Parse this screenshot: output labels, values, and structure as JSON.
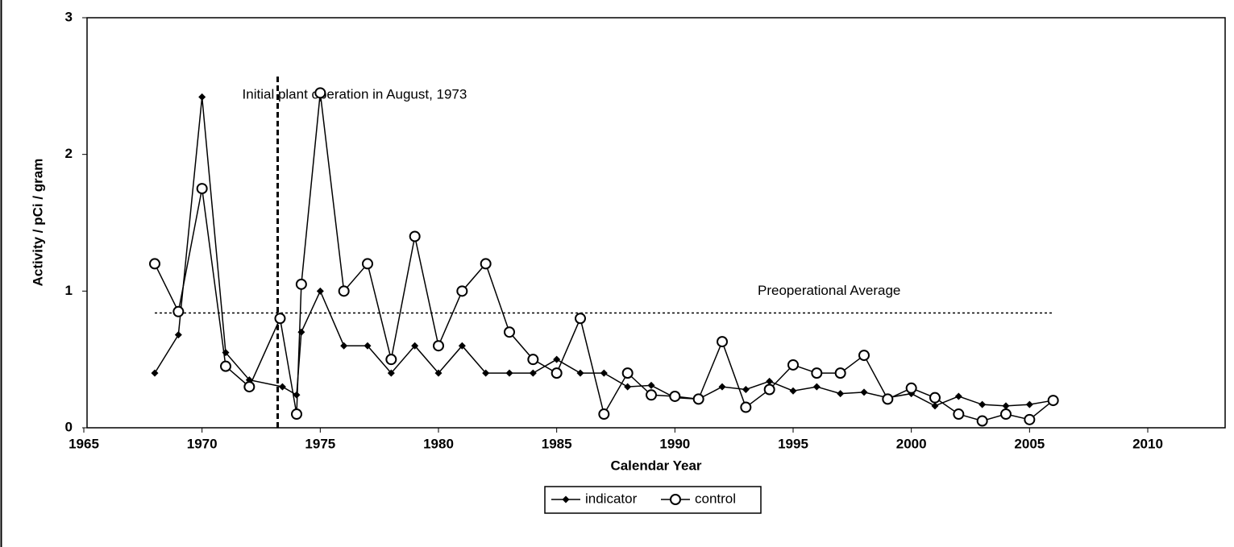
{
  "chart_data": {
    "type": "line",
    "xlabel": "Calendar Year",
    "ylabel": "Activity / pCi / gram",
    "xlim": [
      1965,
      2010
    ],
    "xticks": [
      1965,
      1970,
      1975,
      1980,
      1985,
      1990,
      1995,
      2000,
      2005,
      2010
    ],
    "ylim": [
      0,
      3
    ],
    "yticks": [
      0,
      1,
      2,
      3
    ],
    "legend": "bottom",
    "series": [
      {
        "name": "indicator",
        "color": "#000000",
        "marker": "diamond",
        "x": [
          1968,
          1969,
          1970,
          1971,
          1972,
          1973.4,
          1974,
          1974.2,
          1975,
          1976,
          1977,
          1978,
          1979,
          1980,
          1981,
          1982,
          1983,
          1984,
          1985,
          1986,
          1987,
          1988,
          1989,
          1990,
          1991,
          1992,
          1993,
          1994,
          1995,
          1996,
          1997,
          1998,
          1999,
          2000,
          2001,
          2002,
          2003,
          2004,
          2005,
          2006
        ],
        "values": [
          0.4,
          0.68,
          2.42,
          0.55,
          0.35,
          0.3,
          0.24,
          0.7,
          1.0,
          0.6,
          0.6,
          0.4,
          0.6,
          0.4,
          0.6,
          0.4,
          0.4,
          0.4,
          0.5,
          0.4,
          0.4,
          0.3,
          0.31,
          0.22,
          0.21,
          0.3,
          0.28,
          0.34,
          0.27,
          0.3,
          0.25,
          0.26,
          0.22,
          0.25,
          0.16,
          0.23,
          0.17,
          0.16,
          0.17,
          0.2
        ]
      },
      {
        "name": "control",
        "color": "#000000",
        "marker": "circle",
        "x": [
          1968,
          1969,
          1970,
          1971,
          1972,
          1973.3,
          1974,
          1974.2,
          1975,
          1976,
          1977,
          1978,
          1979,
          1980,
          1981,
          1982,
          1983,
          1984,
          1985,
          1986,
          1987,
          1988,
          1989,
          1990,
          1991,
          1992,
          1993,
          1994,
          1995,
          1996,
          1997,
          1998,
          1999,
          2000,
          2001,
          2002,
          2003,
          2004,
          2005,
          2006
        ],
        "values": [
          1.2,
          0.85,
          1.75,
          0.45,
          0.3,
          0.8,
          0.1,
          1.05,
          2.45,
          1.0,
          1.2,
          0.5,
          1.4,
          0.6,
          1.0,
          1.2,
          0.7,
          0.5,
          0.4,
          0.8,
          0.1,
          0.4,
          0.24,
          0.23,
          0.21,
          0.63,
          0.15,
          0.28,
          0.46,
          0.4,
          0.4,
          0.53,
          0.21,
          0.29,
          0.22,
          0.1,
          0.05,
          0.1,
          0.06,
          0.2
        ]
      }
    ],
    "reference_lines": [
      {
        "orientation": "vertical",
        "x": 1973.2,
        "ylim": [
          0,
          2.57
        ],
        "label": "Initial plant operation in August, 1973"
      },
      {
        "orientation": "horizontal",
        "y": 0.84,
        "xlim": [
          1968,
          2006
        ],
        "label": "Preoperational Average"
      }
    ]
  }
}
